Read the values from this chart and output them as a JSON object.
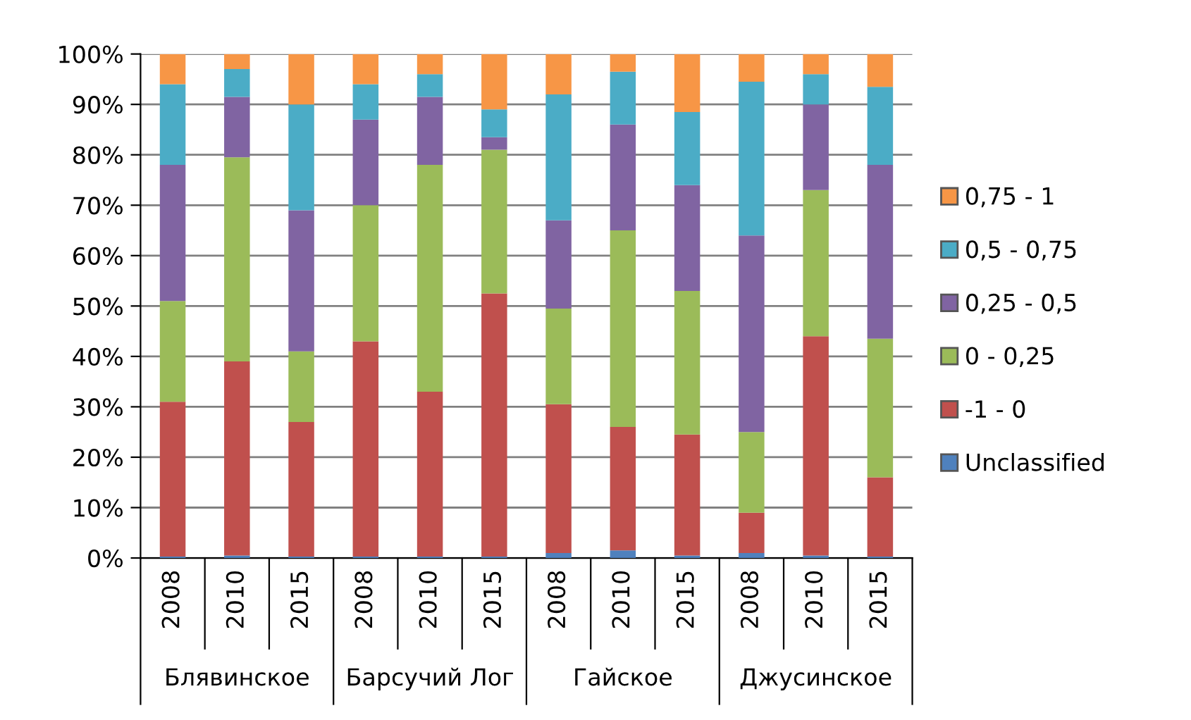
{
  "chart_data": {
    "type": "bar",
    "stacked": true,
    "categories": [
      "2008",
      "2010",
      "2015",
      "2008",
      "2010",
      "2015",
      "2008",
      "2010",
      "2015",
      "2008",
      "2010",
      "2015"
    ],
    "series": [
      {
        "name": "Unclassified",
        "color": "#4f81bd",
        "values": [
          0.3,
          0.5,
          0.3,
          0.3,
          0.3,
          0.3,
          1,
          1.5,
          0.5,
          1,
          0.5,
          0.3
        ]
      },
      {
        "name": "-1 - 0",
        "color": "#c0504d",
        "values": [
          30.7,
          38.5,
          26.7,
          42.7,
          32.7,
          52.2,
          29.5,
          24.5,
          24,
          8,
          43.5,
          15.7
        ]
      },
      {
        "name": "0 - 0,25",
        "color": "#9bbb59",
        "values": [
          20,
          40.5,
          14,
          27,
          45,
          28.5,
          19,
          39,
          28.5,
          16,
          29,
          27.5
        ]
      },
      {
        "name": "0,25 - 0,5",
        "color": "#8064a2",
        "values": [
          27,
          12,
          28,
          17,
          13.5,
          2.5,
          17.5,
          21,
          21,
          39,
          17,
          34.5
        ]
      },
      {
        "name": "0,5 - 0,75",
        "color": "#4bacc6",
        "values": [
          16,
          5.5,
          21,
          7,
          4.5,
          5.5,
          25,
          10.5,
          14.5,
          30.5,
          6,
          15.5
        ]
      },
      {
        "name": "0,75 - 1",
        "color": "#f79646",
        "values": [
          6,
          3,
          10,
          6,
          4,
          11,
          8,
          3.5,
          11.5,
          5.5,
          4,
          6.5
        ]
      }
    ],
    "annotations": [
      "Блявинское",
      "Барсучий Лог",
      "Гайское",
      "Джусинское"
    ],
    "ylim": [
      0,
      100
    ],
    "yticks": [
      {
        "value": 0,
        "label": "0%"
      },
      {
        "value": 10,
        "label": "10%"
      },
      {
        "value": 20,
        "label": "20%"
      },
      {
        "value": 30,
        "label": "30%"
      },
      {
        "value": 40,
        "label": "40%"
      },
      {
        "value": 50,
        "label": "50%"
      },
      {
        "value": 60,
        "label": "60%"
      },
      {
        "value": 70,
        "label": "70%"
      },
      {
        "value": 80,
        "label": "80%"
      },
      {
        "value": 90,
        "label": "90%"
      },
      {
        "value": 100,
        "label": "100%"
      }
    ],
    "grid": "y",
    "legend": "right"
  }
}
